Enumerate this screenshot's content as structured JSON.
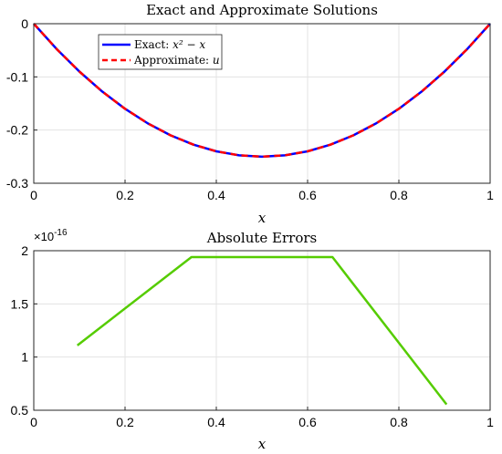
{
  "chart_data": [
    {
      "type": "line",
      "title": "Exact and Approximate Solutions",
      "xlabel": "x",
      "ylabel": "",
      "xlim": [
        0,
        1
      ],
      "ylim": [
        -0.3,
        0
      ],
      "x_ticks": [
        "0",
        "0.2",
        "0.4",
        "0.6",
        "0.8",
        "1"
      ],
      "y_ticks": [
        "0",
        "-0.1",
        "-0.2",
        "-0.3"
      ],
      "grid": true,
      "legend_position": "top-left",
      "x": [
        0,
        0.05,
        0.1,
        0.15,
        0.2,
        0.25,
        0.3,
        0.35,
        0.4,
        0.45,
        0.5,
        0.55,
        0.6,
        0.65,
        0.7,
        0.75,
        0.8,
        0.85,
        0.9,
        0.95,
        1
      ],
      "series": [
        {
          "name": "Exact: x^2 - x",
          "legend_prefix": "Exact: ",
          "legend_math": "x² − x",
          "color": "#0000ff",
          "style": "solid",
          "values": [
            0,
            -0.0475,
            -0.09,
            -0.1275,
            -0.16,
            -0.1875,
            -0.21,
            -0.2275,
            -0.24,
            -0.2475,
            -0.25,
            -0.2475,
            -0.24,
            -0.2275,
            -0.21,
            -0.1875,
            -0.16,
            -0.1275,
            -0.09,
            -0.0475,
            0
          ]
        },
        {
          "name": "Approximate: u",
          "legend_prefix": "Approximate: ",
          "legend_math": "u",
          "color": "#ff0000",
          "style": "dashed",
          "values": [
            0,
            -0.0475,
            -0.09,
            -0.1275,
            -0.16,
            -0.1875,
            -0.21,
            -0.2275,
            -0.24,
            -0.2475,
            -0.25,
            -0.2475,
            -0.24,
            -0.2275,
            -0.21,
            -0.1875,
            -0.16,
            -0.1275,
            -0.09,
            -0.0475,
            0
          ]
        }
      ]
    },
    {
      "type": "line",
      "title": "Absolute Errors",
      "xlabel": "x",
      "ylabel": "",
      "xlim": [
        0,
        1
      ],
      "ylim": [
        0.5,
        2
      ],
      "y_scale_exponent": "×10",
      "y_scale_power": "-16",
      "x_ticks": [
        "0",
        "0.2",
        "0.4",
        "0.6",
        "0.8",
        "1"
      ],
      "y_ticks": [
        "2",
        "1.5",
        "1",
        "0.5"
      ],
      "grid": true,
      "x": [
        0.0955,
        0.3455,
        0.6545,
        0.9045
      ],
      "series": [
        {
          "name": "",
          "color": "#55cc00",
          "style": "solid",
          "values": [
            1.11,
            1.94,
            1.94,
            0.555
          ]
        }
      ]
    }
  ]
}
